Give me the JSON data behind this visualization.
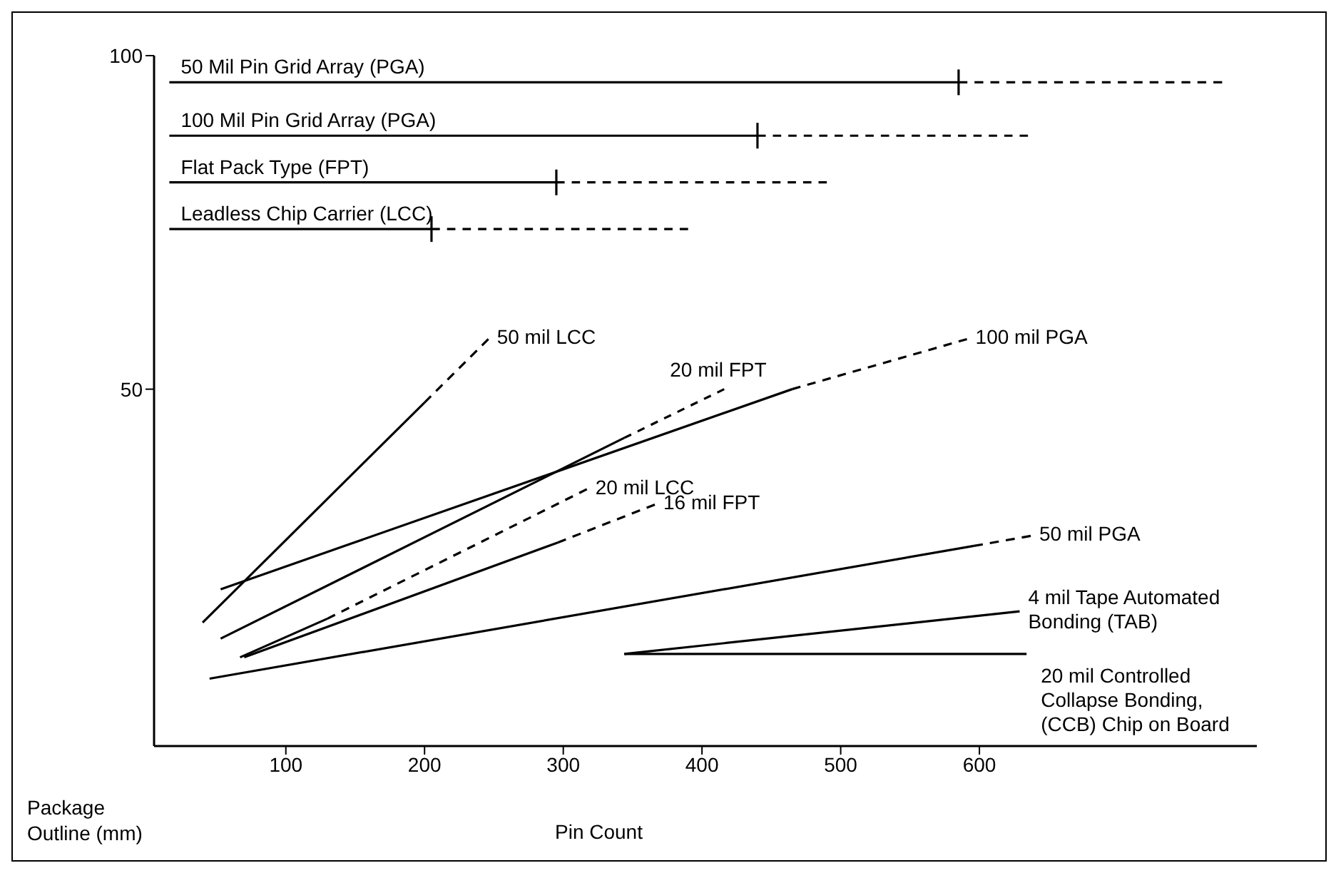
{
  "chart_data": {
    "type": "line",
    "xlabel": "Pin Count",
    "ylabel": "Package Outline (mm)",
    "xlim": [
      5,
      800
    ],
    "ylim": [
      -3.5,
      100
    ],
    "xticks": [
      100,
      200,
      300,
      400,
      500,
      600
    ],
    "yticks": [
      50,
      100
    ],
    "marker": "none",
    "grid": false,
    "series": [
      {
        "name": "50 Mil Pin Grid Array (PGA)",
        "color": "#000000",
        "line_style": "solid",
        "x": [
          16,
          585
        ],
        "values": [
          96,
          96
        ]
      },
      {
        "color": "#000000",
        "line_style": "dashed",
        "x": [
          585,
          775
        ],
        "values": [
          96,
          96
        ]
      },
      {
        "name": "100 Mil Pin Grid Array (PGA)",
        "color": "#000000",
        "line_style": "solid",
        "x": [
          16,
          440
        ],
        "values": [
          88,
          88
        ]
      },
      {
        "color": "#000000",
        "line_style": "dashed",
        "x": [
          440,
          635
        ],
        "values": [
          88,
          88
        ]
      },
      {
        "name": "Flat Pack Type (FPT)",
        "color": "#000000",
        "line_style": "solid",
        "x": [
          16,
          295
        ],
        "values": [
          81,
          81
        ]
      },
      {
        "color": "#000000",
        "line_style": "dashed",
        "x": [
          295,
          490
        ],
        "values": [
          81,
          81
        ]
      },
      {
        "name": "Leadless Chip Carrier (LCC)",
        "color": "#000000",
        "line_style": "solid",
        "x": [
          16,
          205
        ],
        "values": [
          74,
          74
        ]
      },
      {
        "color": "#000000",
        "line_style": "dashed",
        "x": [
          205,
          390
        ],
        "values": [
          74,
          74
        ]
      },
      {
        "color": "#000000",
        "line_style": "solid",
        "x": [
          40,
          200
        ],
        "values": [
          15,
          48
        ]
      },
      {
        "name": "50 mil LCC",
        "color": "#000000",
        "line_style": "dashed",
        "x": [
          200,
          246
        ],
        "values": [
          48,
          57.5
        ]
      },
      {
        "color": "#000000",
        "line_style": "solid",
        "x": [
          53,
          465
        ],
        "values": [
          20,
          50
        ]
      },
      {
        "name": "100 mil PGA",
        "color": "#000000",
        "line_style": "dashed",
        "x": [
          465,
          591
        ],
        "values": [
          50,
          57.5
        ]
      },
      {
        "color": "#000000",
        "line_style": "solid",
        "x": [
          53,
          344
        ],
        "values": [
          12.6,
          42.7
        ]
      },
      {
        "name": "20 mil FPT",
        "color": "#000000",
        "line_style": "dashed",
        "x": [
          344,
          416
        ],
        "values": [
          42.7,
          50
        ]
      },
      {
        "color": "#000000",
        "line_style": "solid",
        "x": [
          67,
          130
        ],
        "values": [
          9.8,
          15.6
        ]
      },
      {
        "name": "20 mil LCC",
        "color": "#000000",
        "line_style": "dashed",
        "x": [
          130,
          317
        ],
        "values": [
          15.6,
          35
        ]
      },
      {
        "color": "#000000",
        "line_style": "solid",
        "x": [
          70,
          296
        ],
        "values": [
          9.8,
          27
        ]
      },
      {
        "name": "16 mil FPT",
        "color": "#000000",
        "line_style": "dashed",
        "x": [
          296,
          366
        ],
        "values": [
          27,
          32.7
        ]
      },
      {
        "color": "#000000",
        "line_style": "solid",
        "x": [
          45,
          596
        ],
        "values": [
          6.6,
          26.5
        ]
      },
      {
        "name": "50 mil PGA",
        "color": "#000000",
        "line_style": "dashed",
        "x": [
          596,
          637
        ],
        "values": [
          26.5,
          28
        ]
      },
      {
        "name": "4 mil Tape Automated Bonding  (TAB)",
        "color": "#000000",
        "line_style": "solid",
        "x": [
          344,
          629
        ],
        "values": [
          10.3,
          16.7
        ]
      },
      {
        "name": "20 mil Controlled Collapse Bonding, (CCB) Chip on Board",
        "color": "#000000",
        "line_style": "solid",
        "x": [
          344,
          634
        ],
        "values": [
          10.3,
          10.3
        ]
      }
    ]
  }
}
